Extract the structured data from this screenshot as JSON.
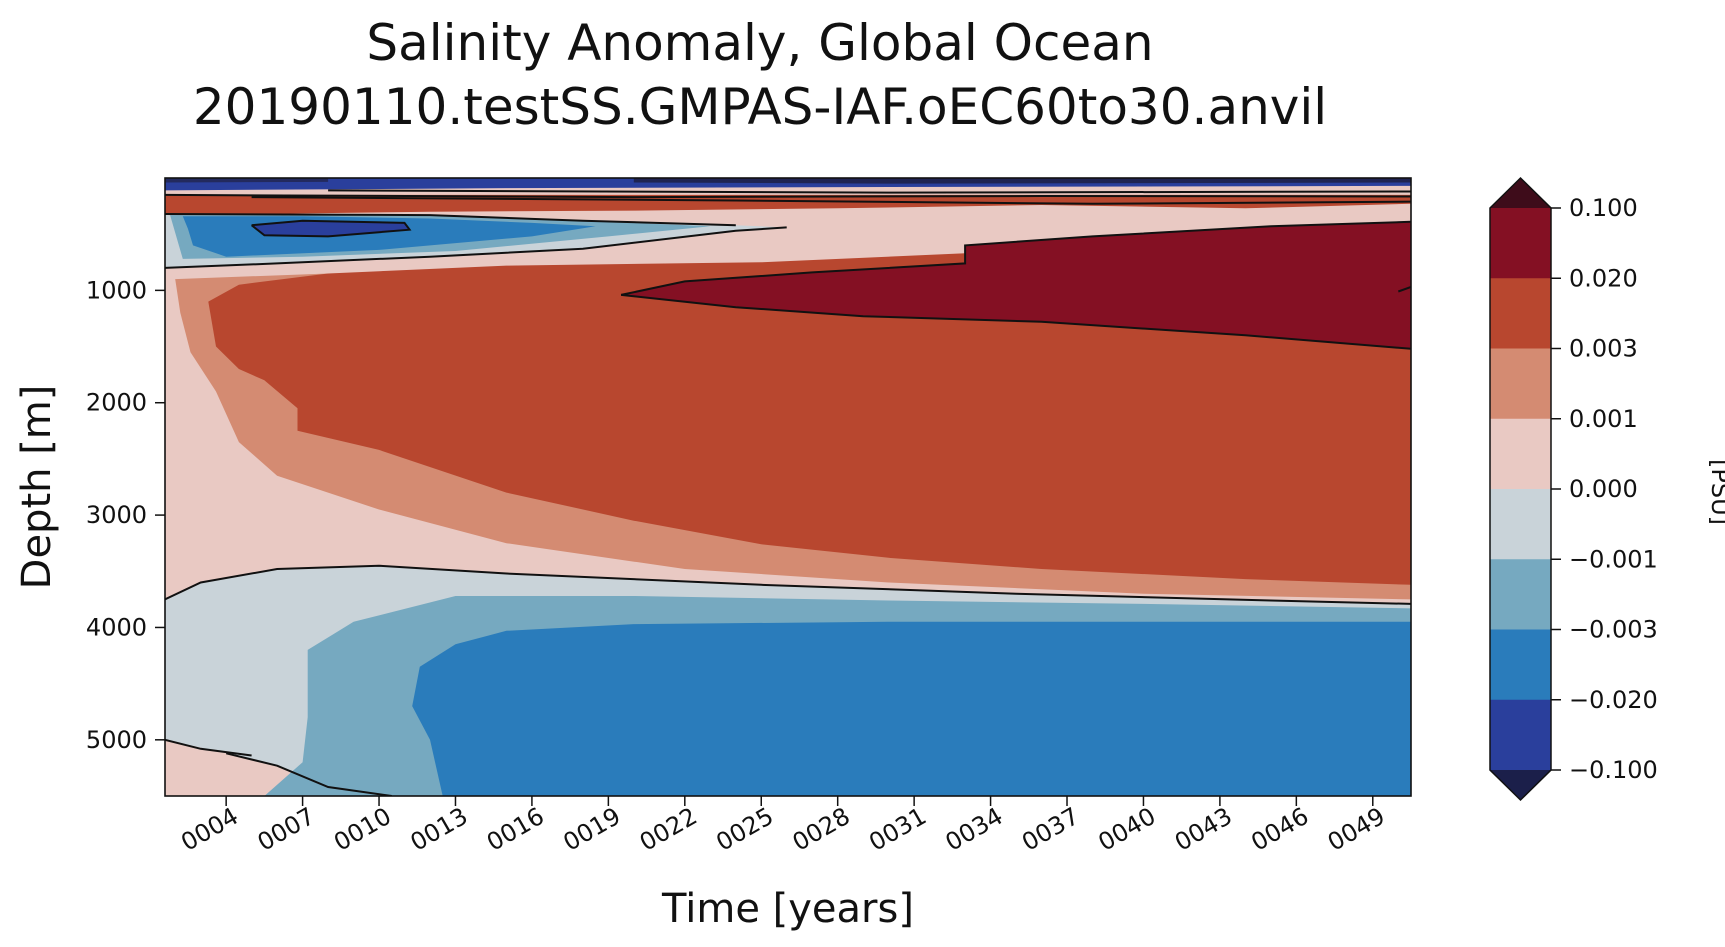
{
  "chart_data": {
    "type": "heatmap",
    "title": "Salinity Anomaly, Global Ocean",
    "subtitle": "20190110.testSS.GMPAS-IAF.oEC60to30.anvil",
    "xlabel": "Time [years]",
    "ylabel": "Depth [m]",
    "x_ticks": [
      "0004",
      "0007",
      "0010",
      "0013",
      "0016",
      "0019",
      "0022",
      "0025",
      "0028",
      "0031",
      "0034",
      "0037",
      "0040",
      "0043",
      "0046",
      "0049"
    ],
    "x_tick_values": [
      4,
      7,
      10,
      13,
      16,
      19,
      22,
      25,
      28,
      31,
      34,
      37,
      40,
      43,
      46,
      49
    ],
    "xlim": [
      1.6,
      50.5
    ],
    "y_ticks": [
      "1000",
      "2000",
      "3000",
      "4000",
      "5000"
    ],
    "y_tick_values": [
      1000,
      2000,
      3000,
      4000,
      5000
    ],
    "ylim": [
      5500,
      0
    ],
    "y_inverted": true,
    "colorbar": {
      "label": "[PSU]",
      "levels": [
        "0.100",
        "0.020",
        "0.003",
        "0.001",
        "0.000",
        "−0.001",
        "−0.003",
        "−0.020",
        "−0.100"
      ],
      "colors": [
        "#841023",
        "#b8472f",
        "#d48b72",
        "#e9c9c3",
        "#c9d3d9",
        "#76a9c0",
        "#2a7cbb",
        "#2a3f9c"
      ],
      "extend_top_color": "#3e0c1a",
      "extend_bottom_color": "#1b1f4a"
    },
    "regions": [
      {
        "level_range": "0.003 to 0.020",
        "color": "#b8472f",
        "depth_m": [
          900,
          3650
        ],
        "years": [
          2,
          50.5
        ]
      },
      {
        "level_range": "0.020 to 0.100",
        "color": "#841023",
        "depth_m": [
          150,
          1500
        ],
        "years": [
          19.5,
          50.5
        ]
      },
      {
        "level_range": "-0.003 to -0.020",
        "color": "#2a7cbb",
        "depth_m": [
          3950,
          5500
        ],
        "years": [
          11,
          50.5
        ]
      },
      {
        "level_range": "-0.020 to -0.100",
        "color": "#2a3f9c",
        "depth_m": [
          420,
          520
        ],
        "years": [
          5,
          11
        ]
      }
    ]
  }
}
